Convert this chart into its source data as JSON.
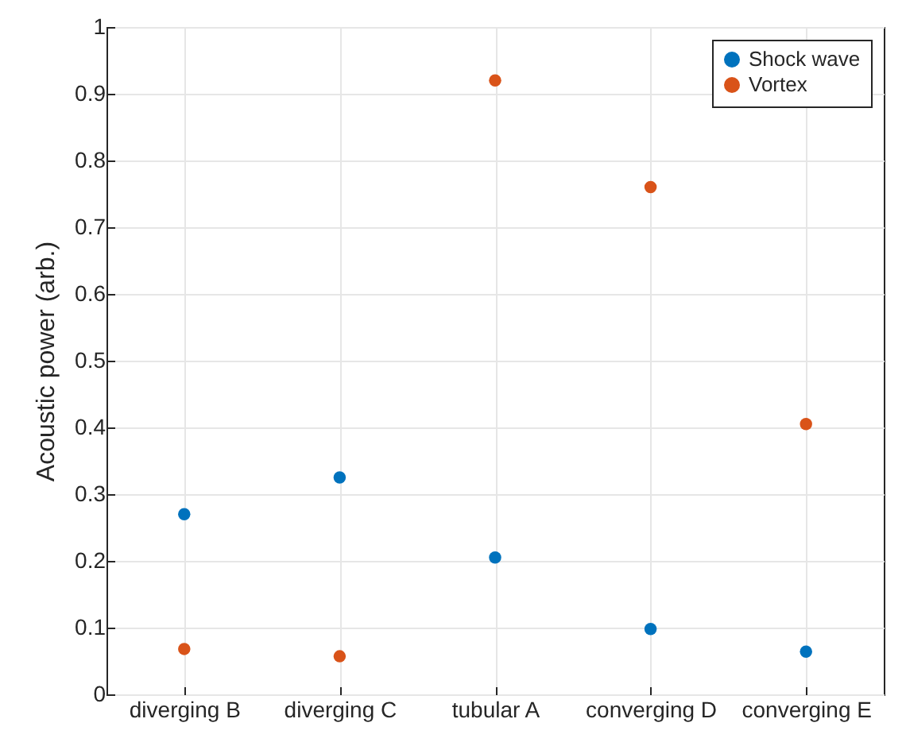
{
  "chart_data": {
    "type": "scatter",
    "ylabel": "Acoustic power (arb.)",
    "categories": [
      "diverging B",
      "diverging C",
      "tubular A",
      "converging D",
      "converging E"
    ],
    "series": [
      {
        "name": "Shock wave",
        "color": "#0072bd",
        "values": [
          0.27,
          0.325,
          0.205,
          0.098,
          0.064
        ]
      },
      {
        "name": "Vortex",
        "color": "#d95319",
        "values": [
          0.068,
          0.057,
          0.92,
          0.76,
          0.405
        ]
      }
    ],
    "ylim": [
      0,
      1
    ],
    "yticks": [
      0,
      0.1,
      0.2,
      0.3,
      0.4,
      0.5,
      0.6,
      0.7,
      0.8,
      0.9,
      1
    ],
    "grid": true,
    "legend": "top right",
    "marker": "circle"
  }
}
